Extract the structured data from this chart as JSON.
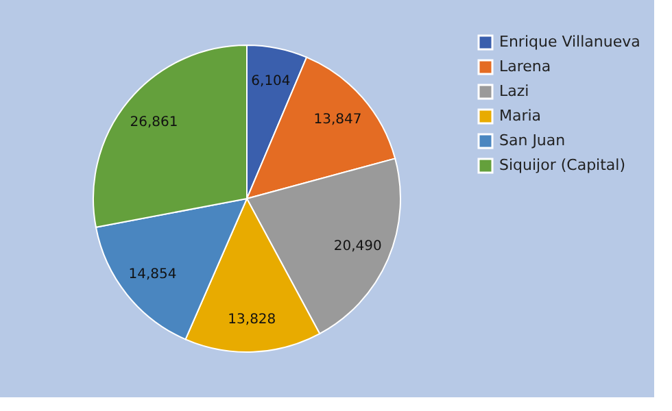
{
  "chart_data": {
    "type": "pie",
    "categories": [
      "Enrique Villanueva",
      "Larena",
      "Lazi",
      "Maria",
      "San Juan",
      "Siquijor (Capital)"
    ],
    "values": [
      6104,
      13847,
      20490,
      13828,
      14854,
      26861
    ],
    "colors": [
      "#3a5fad",
      "#e46c23",
      "#9a9a9a",
      "#e8ab00",
      "#4a86c0",
      "#64a03c"
    ],
    "value_labels": [
      "6,104",
      "13,847",
      "20,490",
      "13,828",
      "14,854",
      "26,861"
    ],
    "legend": "right"
  }
}
